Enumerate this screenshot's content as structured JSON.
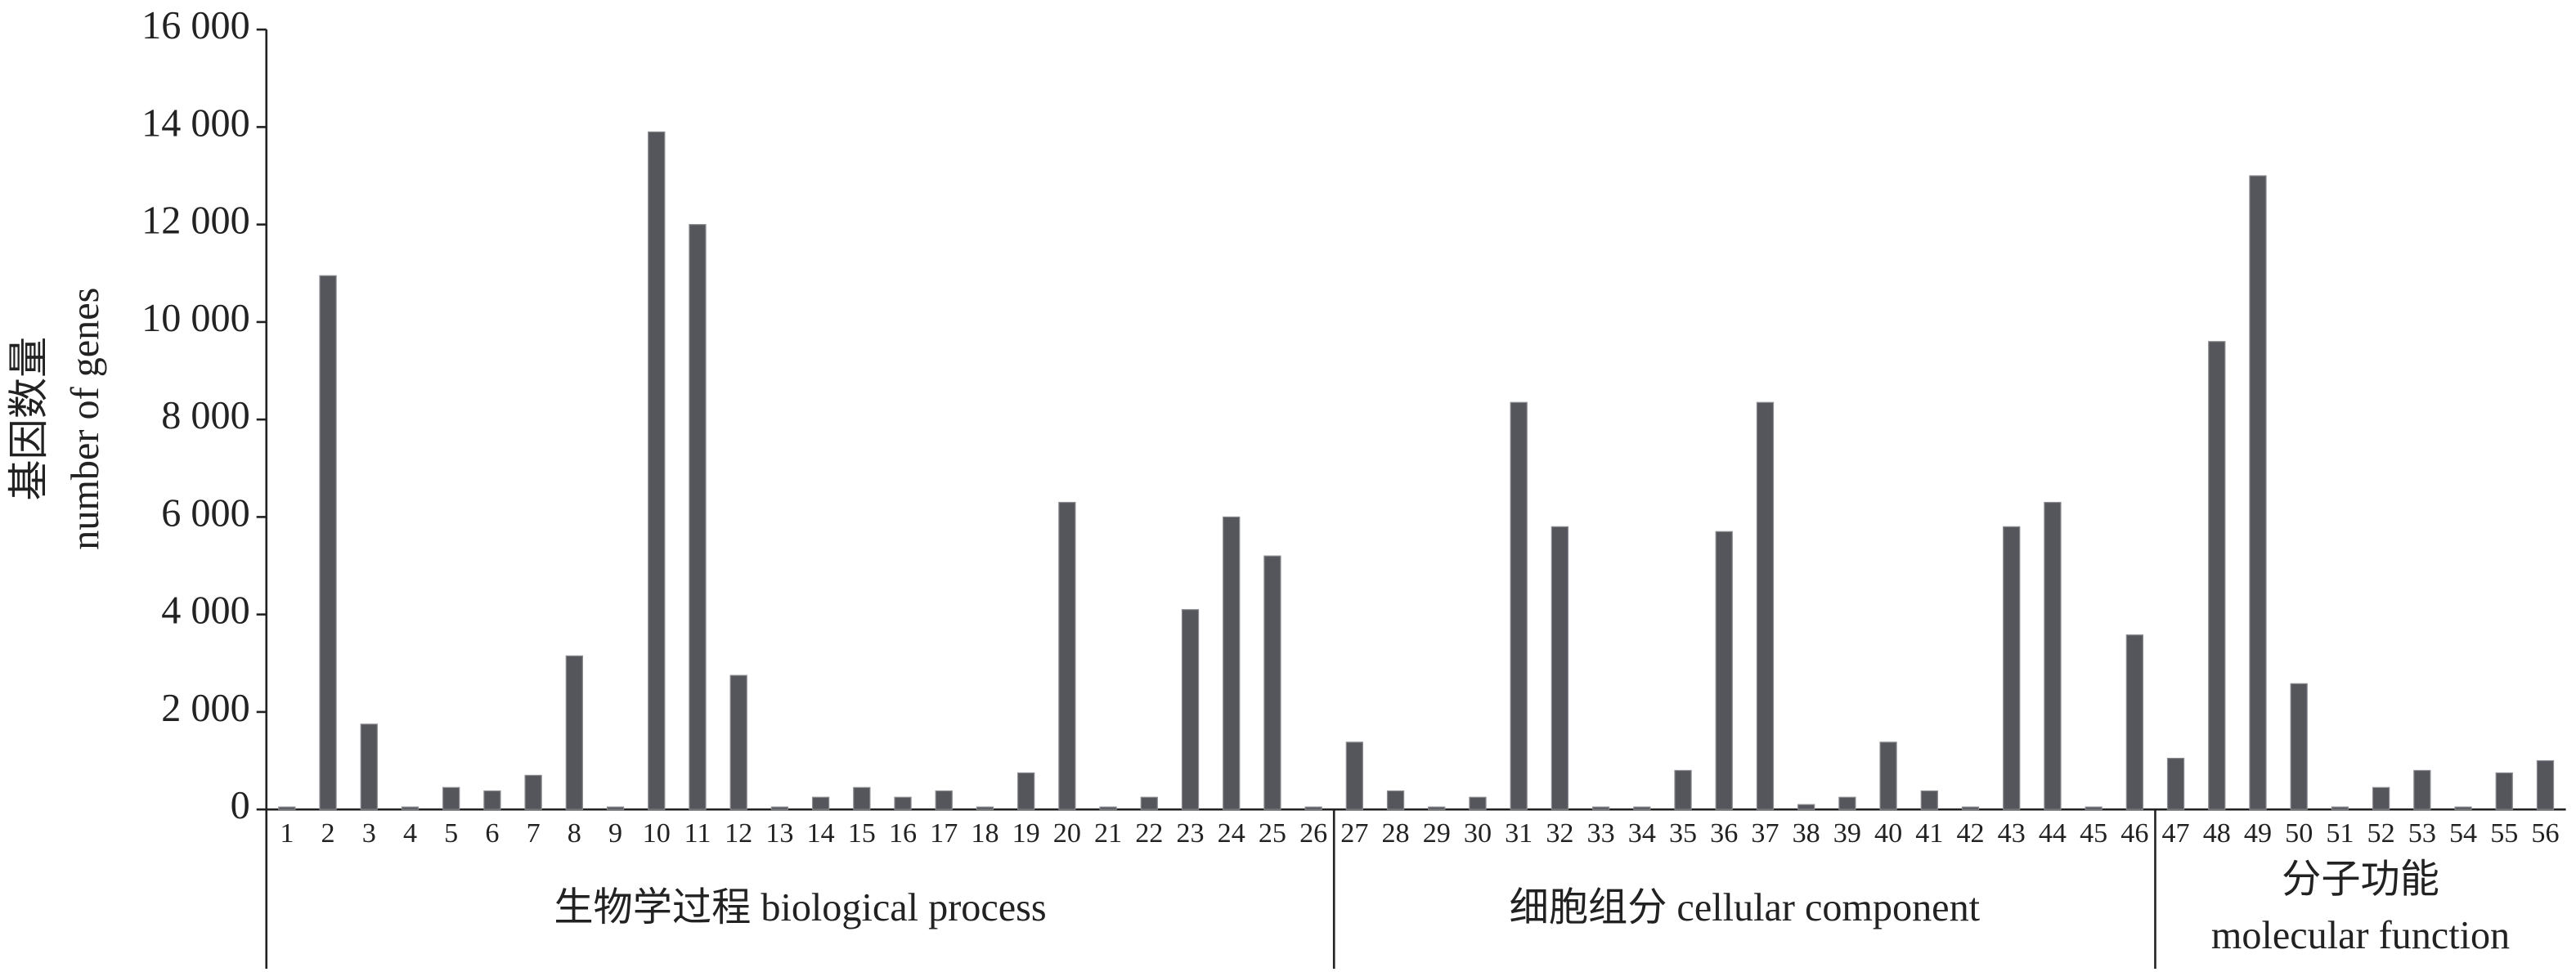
{
  "chart_data": {
    "type": "grouped-category-bar",
    "y_label": [
      "基因数量",
      "number of genes"
    ],
    "color": "#55565b",
    "ylim": [
      0,
      16000
    ],
    "yticks": [
      0,
      {
        "value": 2000,
        "label": "2 000"
      },
      {
        "value": 4000,
        "label": "4 000"
      },
      {
        "value": 6000,
        "label": "6 000"
      },
      {
        "value": 8000,
        "label": "8 000"
      },
      {
        "value": 10000,
        "label": "10 000"
      },
      {
        "value": 12000,
        "label": "12 000"
      },
      {
        "value": 14000,
        "label": "14 000"
      },
      {
        "value": 16000,
        "label": "16 000"
      }
    ],
    "groups": [
      {
        "label": [
          "生物学过程 biological process"
        ],
        "categories": [
          "1",
          "2",
          "3",
          "4",
          "5",
          "6",
          "7",
          "8",
          "9",
          "10",
          "11",
          "12",
          "13",
          "14",
          "15",
          "16",
          "17",
          "18",
          "19",
          "20",
          "21",
          "22",
          "23",
          "24",
          "25",
          "26"
        ],
        "values": [
          50,
          10950,
          1750,
          50,
          450,
          380,
          700,
          3150,
          50,
          13900,
          12000,
          2750,
          50,
          250,
          450,
          250,
          380,
          50,
          750,
          6300,
          50,
          250,
          4100,
          6000,
          5200,
          50
        ]
      },
      {
        "label": [
          "细胞组分 cellular component"
        ],
        "categories": [
          "27",
          "28",
          "29",
          "30",
          "31",
          "32",
          "33",
          "34",
          "35",
          "36",
          "37",
          "38",
          "39",
          "40",
          "41",
          "42",
          "43",
          "44",
          "45",
          "46"
        ],
        "values": [
          1380,
          380,
          50,
          250,
          8350,
          5800,
          50,
          50,
          800,
          5700,
          8350,
          100,
          250,
          1380,
          380,
          50,
          5800,
          6300,
          50,
          3580
        ]
      },
      {
        "label": [
          "分子功能",
          "molecular function"
        ],
        "categories": [
          "47",
          "48",
          "49",
          "50",
          "51",
          "52",
          "53",
          "54",
          "55",
          "56"
        ],
        "values": [
          1050,
          9600,
          13000,
          2580,
          50,
          450,
          800,
          50,
          750,
          1000
        ]
      }
    ]
  }
}
